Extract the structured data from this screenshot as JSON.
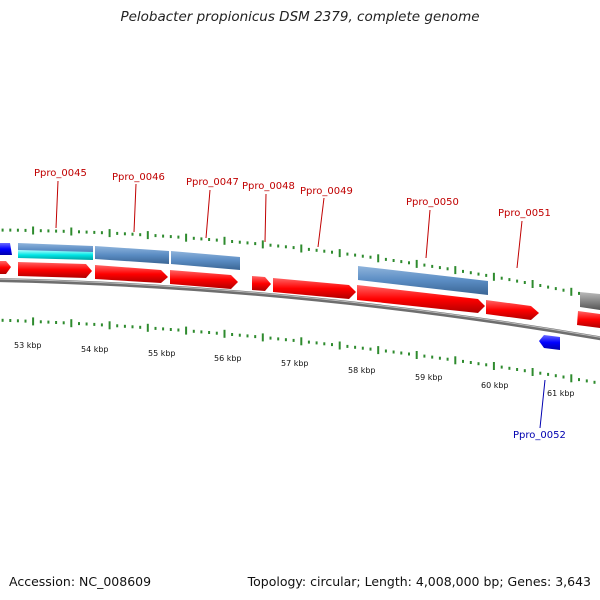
{
  "title": "Pelobacter propionicus DSM 2379, complete genome",
  "footer": {
    "accession": "Accession: NC_008609",
    "summary": "Topology: circular; Length: 4,008,000 bp; Genes: 3,643"
  },
  "colors": {
    "backbone": "#7f7f7f",
    "cds": "#ff0000",
    "reverse_cds": "#0000ff",
    "gene_bar": "#4f81bd",
    "highlight_bar": "#00e5e5",
    "grey_bar": "#808080",
    "tick": "#2e8b2e",
    "label_forward": "#c00000",
    "label_reverse": "#0000b0"
  },
  "kbp_ticks": [
    "53 kbp",
    "54 kbp",
    "55 kbp",
    "56 kbp",
    "57 kbp",
    "58 kbp",
    "59 kbp",
    "60 kbp",
    "61 kbp"
  ],
  "genes": [
    {
      "id": "Ppro_0045",
      "strand": "forward"
    },
    {
      "id": "Ppro_0046",
      "strand": "forward"
    },
    {
      "id": "Ppro_0047",
      "strand": "forward"
    },
    {
      "id": "Ppro_0048",
      "strand": "forward"
    },
    {
      "id": "Ppro_0049",
      "strand": "forward"
    },
    {
      "id": "Ppro_0050",
      "strand": "forward"
    },
    {
      "id": "Ppro_0051",
      "strand": "forward"
    },
    {
      "id": "Ppro_0052",
      "strand": "reverse"
    }
  ]
}
